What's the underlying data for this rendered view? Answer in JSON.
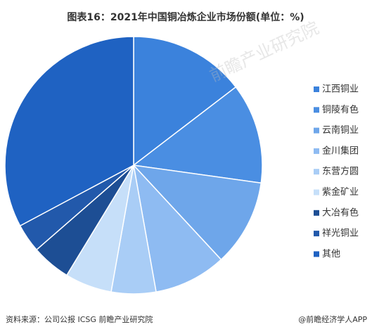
{
  "chart_data": {
    "type": "pie",
    "title": "图表16：2021年中国铜冶炼企业市场份额(单位：%)",
    "categories": [
      "江西铜业",
      "铜陵有色",
      "云南铜业",
      "金川集团",
      "东营方圆",
      "紫金矿业",
      "大冶有色",
      "祥光铜业",
      "其他"
    ],
    "values": [
      14.6,
      12.6,
      10.9,
      9.1,
      5.6,
      5.9,
      4.9,
      3.6,
      32.8
    ],
    "colors": [
      "#3b82dc",
      "#4a8ee2",
      "#6ea6ea",
      "#8ebbf2",
      "#a9cdf6",
      "#c6dff9",
      "#1d4e94",
      "#2259ab",
      "#1f62c2"
    ],
    "legend": "right",
    "source": "资料来源：公司公报 ICSG 前瞻产业研究院",
    "credit": "@前瞻经济学人APP",
    "watermark": "前瞻产业研究院"
  }
}
